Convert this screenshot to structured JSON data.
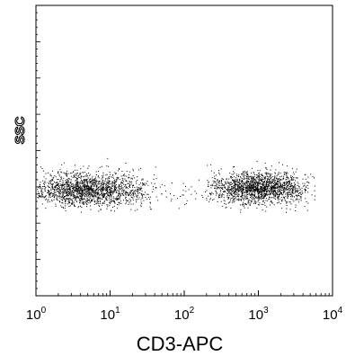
{
  "chart_data": {
    "type": "scatter",
    "plot_style": "flow cytometry dot plot",
    "xlabel": "CD3-APC",
    "ylabel": "SSC",
    "x_scale": "log",
    "xlim": [
      1,
      10000
    ],
    "ylim": [
      0,
      1023
    ],
    "x_ticks": [
      {
        "base": "10",
        "exp": "0"
      },
      {
        "base": "10",
        "exp": "1"
      },
      {
        "base": "10",
        "exp": "2"
      },
      {
        "base": "10",
        "exp": "3"
      },
      {
        "base": "10",
        "exp": "4"
      }
    ],
    "grid": false,
    "legend": "none",
    "point_color": "#000000",
    "populations": [
      {
        "x_range": [
          1,
          45
        ],
        "x_center": 5,
        "y_center": 375,
        "y_spread": 30,
        "density": "high"
      },
      {
        "x_range": [
          25,
          200
        ],
        "x_center": 70,
        "y_center": 370,
        "y_spread": 25,
        "density": "sparse"
      },
      {
        "x_range": [
          200,
          6000
        ],
        "x_center": 1000,
        "y_center": 380,
        "y_spread": 28,
        "density": "high"
      }
    ]
  }
}
